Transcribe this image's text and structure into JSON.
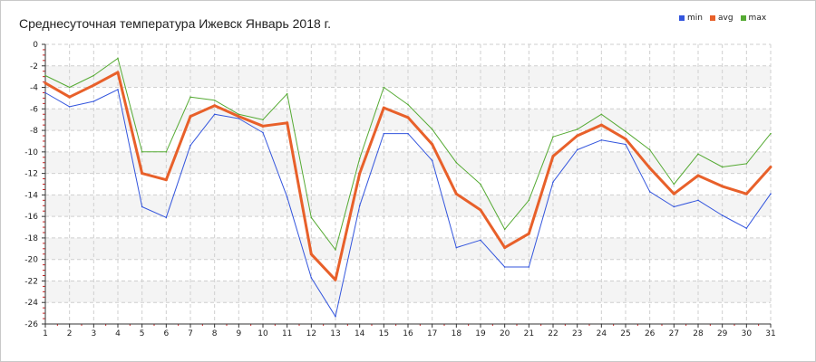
{
  "chart_data": {
    "type": "line",
    "title": "Среднесуточная температура Ижевск  Январь 2018 г.",
    "xlabel": "",
    "ylabel": "",
    "x": [
      1,
      2,
      3,
      4,
      5,
      6,
      7,
      8,
      9,
      10,
      11,
      12,
      13,
      14,
      15,
      16,
      17,
      18,
      19,
      20,
      21,
      22,
      23,
      24,
      25,
      26,
      27,
      28,
      29,
      30,
      31
    ],
    "ylim": [
      -26,
      0
    ],
    "yticks": [
      0,
      -2,
      -4,
      -6,
      -8,
      -10,
      -12,
      -14,
      -16,
      -18,
      -20,
      -22,
      -24,
      -26
    ],
    "grid": true,
    "legend_position": "top-right",
    "series": [
      {
        "name": "min",
        "color": "#3355dd",
        "values": [
          -4.5,
          -5.8,
          -5.3,
          -4.2,
          -15.1,
          -16.1,
          -9.4,
          -6.5,
          -6.9,
          -8.2,
          -14.2,
          -21.7,
          -25.3,
          -15.0,
          -8.3,
          -8.3,
          -10.8,
          -18.9,
          -18.2,
          -20.7,
          -20.7,
          -12.8,
          -9.8,
          -8.9,
          -9.3,
          -13.7,
          -15.1,
          -14.5,
          -15.9,
          -17.1,
          -13.9
        ]
      },
      {
        "name": "avg",
        "color": "#e8602a",
        "values": [
          -3.6,
          -4.9,
          -3.8,
          -2.6,
          -12.0,
          -12.6,
          -6.7,
          -5.7,
          -6.7,
          -7.6,
          -7.3,
          -19.5,
          -21.9,
          -12.0,
          -5.9,
          -6.8,
          -9.3,
          -13.9,
          -15.4,
          -18.9,
          -17.6,
          -10.4,
          -8.5,
          -7.5,
          -8.8,
          -11.5,
          -13.9,
          -12.2,
          -13.2,
          -13.9,
          -11.4
        ]
      },
      {
        "name": "max",
        "color": "#55aa33",
        "values": [
          -2.9,
          -4.0,
          -2.9,
          -1.3,
          -10.0,
          -10.0,
          -4.9,
          -5.2,
          -6.5,
          -7.0,
          -4.6,
          -16.1,
          -19.1,
          -10.6,
          -4.0,
          -5.6,
          -7.9,
          -11.0,
          -13.0,
          -17.2,
          -14.5,
          -8.6,
          -7.9,
          -6.5,
          -8.1,
          -9.8,
          -13.0,
          -10.2,
          -11.4,
          -11.1,
          -8.3
        ]
      }
    ]
  }
}
